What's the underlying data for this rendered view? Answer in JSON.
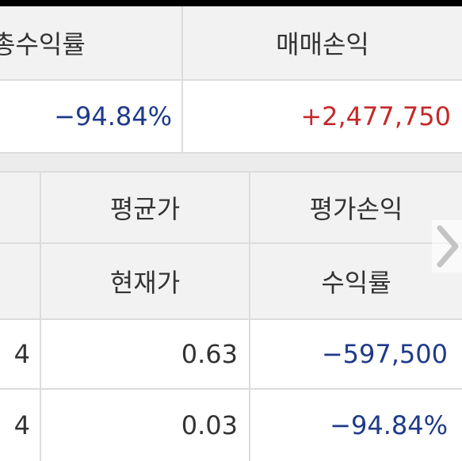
{
  "summary": {
    "header_left": "총수익률",
    "header_right": "매매손익",
    "value_left": "−94.84%",
    "value_right": "+2,477,750"
  },
  "holdings": {
    "headers": {
      "top_mid": "평균가",
      "top_right": "평가손익",
      "bottom_mid": "현재가",
      "bottom_right": "수익률"
    },
    "row": {
      "qty_top": "4",
      "avg_price": "0.63",
      "eval_pnl": "−597,500",
      "qty_bottom": "4",
      "cur_price": "0.03",
      "return_rate": "−94.84%"
    }
  },
  "colors": {
    "negative": "#1f3a8a",
    "positive": "#c62828",
    "header_bg": "#f2f2f2",
    "border": "#dcdcdc"
  },
  "icons": {
    "scroll_right": "chevron-right-icon"
  }
}
